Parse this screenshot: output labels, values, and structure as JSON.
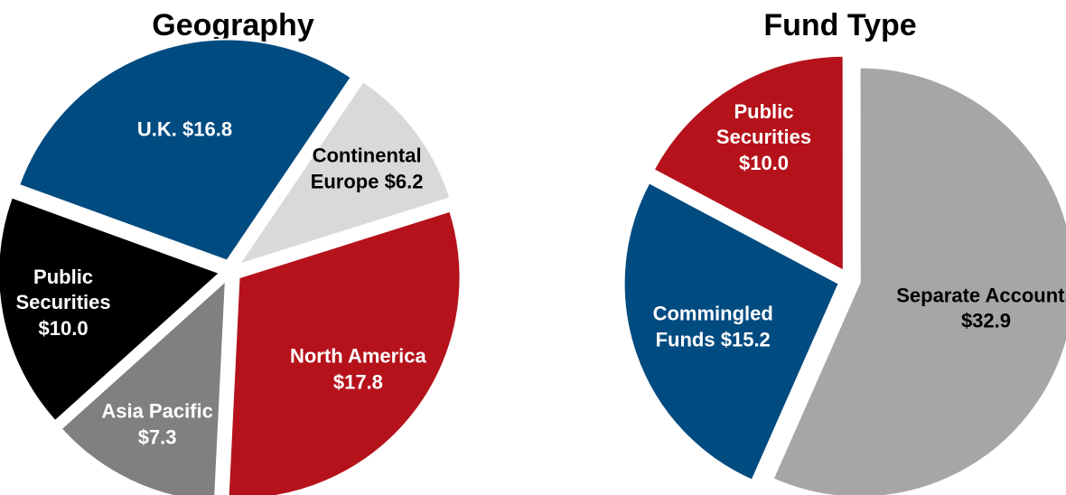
{
  "chart_data": [
    {
      "type": "pie",
      "title": "Geography",
      "categories": [
        "U.K.",
        "Continental Europe",
        "North America",
        "Asia Pacific",
        "Public Securities"
      ],
      "values": [
        16.8,
        6.2,
        17.8,
        7.3,
        10.0
      ],
      "value_labels": [
        "$16.8",
        "$6.2",
        "$17.8",
        "$7.3",
        "$10.0"
      ],
      "colors": [
        "#004b80",
        "#d9d9d9",
        "#b5121b",
        "#808080",
        "#000000"
      ]
    },
    {
      "type": "pie",
      "title": "Fund Type",
      "categories": [
        "Public Securities",
        "Separate Accounts",
        "Commingled Funds"
      ],
      "values": [
        10.0,
        32.9,
        15.2
      ],
      "value_labels": [
        "$10.0",
        "$32.9",
        "$15.2"
      ],
      "colors": [
        "#b5121b",
        "#a6a6a6",
        "#004b80"
      ]
    }
  ]
}
